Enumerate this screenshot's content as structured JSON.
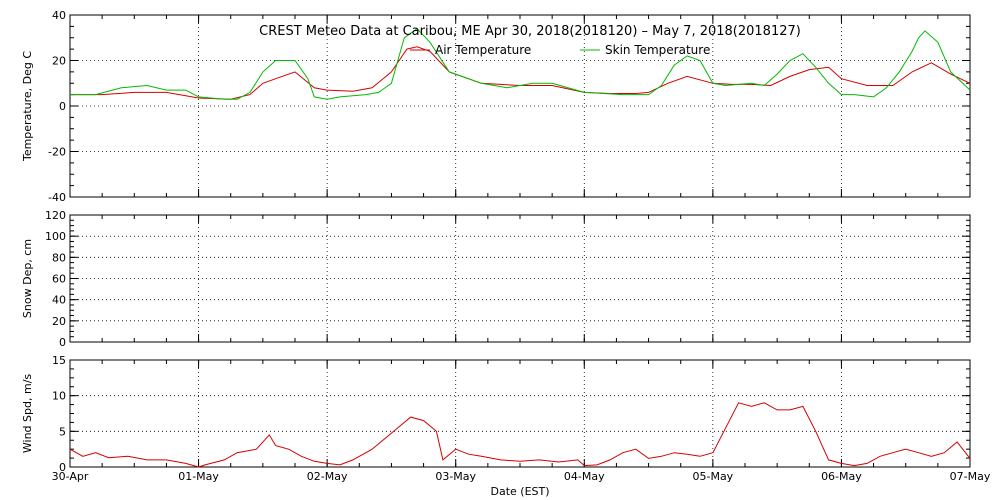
{
  "chart_data": {
    "type": "line",
    "title": "CREST Meteo Data at Caribou, ME   Apr 30, 2018(2018120) – May  7, 2018(2018127)",
    "xlabel": "Date (EST)",
    "x_tick_labels": [
      "30-Apr",
      "01-May",
      "02-May",
      "03-May",
      "04-May",
      "05-May",
      "06-May",
      "07-May"
    ],
    "x_range_days": [
      0,
      7
    ],
    "grid": true,
    "colors": {
      "air": "#d40000",
      "skin": "#00bb00",
      "wind": "#d40000",
      "grid": "#000000"
    },
    "panels": [
      {
        "id": "temperature",
        "ylabel": "Temperature, Deg C",
        "ylim": [
          -40,
          40
        ],
        "y_ticks": [
          -40,
          -20,
          0,
          20,
          40
        ],
        "legend": {
          "placement": "top-center",
          "entries": [
            "Air Temperature",
            "Skin Temperature"
          ]
        },
        "series": [
          {
            "name": "Air Temperature",
            "color": "#d40000",
            "x": [
              0,
              0.25,
              0.5,
              0.75,
              1.0,
              1.25,
              1.4,
              1.5,
              1.6,
              1.75,
              1.9,
              2.0,
              2.2,
              2.35,
              2.5,
              2.62,
              2.7,
              2.8,
              2.95,
              3.2,
              3.5,
              3.75,
              4.0,
              4.2,
              4.4,
              4.5,
              4.65,
              4.8,
              5.0,
              5.15,
              5.3,
              5.45,
              5.6,
              5.75,
              5.9,
              6.0,
              6.2,
              6.4,
              6.55,
              6.7,
              6.85,
              7.0
            ],
            "y": [
              5,
              5,
              6,
              6,
              3.5,
              3,
              5,
              10,
              12,
              15,
              8,
              7,
              6.5,
              8,
              15,
              25,
              26,
              24,
              15,
              10,
              9,
              9,
              6,
              5.5,
              5.5,
              6,
              10,
              13,
              10,
              9.5,
              9.5,
              9,
              13,
              16,
              17,
              12,
              9,
              9,
              15,
              19,
              14,
              10
            ]
          },
          {
            "name": "Skin Temperature",
            "color": "#00bb00",
            "x": [
              0,
              0.2,
              0.4,
              0.6,
              0.75,
              0.9,
              1.0,
              1.2,
              1.3,
              1.4,
              1.5,
              1.6,
              1.75,
              1.85,
              1.9,
              2.0,
              2.1,
              2.3,
              2.4,
              2.5,
              2.6,
              2.7,
              2.8,
              2.95,
              3.2,
              3.4,
              3.6,
              3.75,
              4.0,
              4.3,
              4.5,
              4.6,
              4.7,
              4.8,
              4.9,
              5.0,
              5.1,
              5.3,
              5.4,
              5.5,
              5.6,
              5.7,
              5.8,
              5.9,
              6.0,
              6.1,
              6.25,
              6.35,
              6.45,
              6.55,
              6.6,
              6.65,
              6.75,
              6.85,
              7.0
            ],
            "y": [
              5,
              5,
              8,
              9,
              7,
              7,
              4,
              3,
              3,
              6,
              15,
              20,
              20,
              12,
              4,
              3,
              4,
              5,
              6,
              10,
              30,
              34,
              28,
              15,
              10,
              8,
              10,
              10,
              6,
              5,
              5,
              9,
              18,
              22,
              20,
              10,
              9,
              10,
              9,
              14,
              20,
              23,
              17,
              10,
              5,
              5,
              4,
              8,
              15,
              24,
              30,
              33,
              28,
              15,
              7
            ]
          }
        ]
      },
      {
        "id": "snow",
        "ylabel": "Snow Dep, cm",
        "ylim": [
          0,
          120
        ],
        "y_ticks": [
          0,
          20,
          40,
          60,
          80,
          100,
          120
        ],
        "series": []
      },
      {
        "id": "wind",
        "ylabel": "Wind Spd, m/s",
        "ylim": [
          0,
          15
        ],
        "y_ticks": [
          0,
          5,
          10,
          15
        ],
        "series": [
          {
            "name": "",
            "color": "#d40000",
            "x": [
              0,
              0.1,
              0.2,
              0.3,
              0.45,
              0.6,
              0.75,
              0.9,
              1.0,
              1.05,
              1.2,
              1.3,
              1.45,
              1.55,
              1.6,
              1.7,
              1.8,
              1.9,
              2.0,
              2.1,
              2.2,
              2.35,
              2.45,
              2.55,
              2.65,
              2.75,
              2.85,
              2.9,
              3.0,
              3.1,
              3.2,
              3.35,
              3.5,
              3.65,
              3.8,
              3.95,
              4.0,
              4.1,
              4.2,
              4.3,
              4.4,
              4.5,
              4.6,
              4.7,
              4.8,
              4.9,
              5.0,
              5.1,
              5.2,
              5.3,
              5.4,
              5.5,
              5.6,
              5.7,
              5.8,
              5.85,
              5.9,
              6.0,
              6.1,
              6.2,
              6.3,
              6.4,
              6.5,
              6.6,
              6.7,
              6.8,
              6.9,
              7.0
            ],
            "y": [
              2.5,
              1.5,
              2,
              1.3,
              1.5,
              1,
              1,
              0.5,
              0,
              0.3,
              1,
              2,
              2.5,
              4.5,
              3,
              2.5,
              1.5,
              0.8,
              0.5,
              0.3,
              1,
              2.5,
              4,
              5.5,
              7,
              6.5,
              5,
              1,
              2.5,
              1.8,
              1.5,
              1,
              0.8,
              1,
              0.7,
              1,
              0.2,
              0.3,
              1,
              2,
              2.5,
              1.2,
              1.5,
              2,
              1.8,
              1.5,
              2,
              5.5,
              9,
              8.5,
              9,
              8,
              8,
              8.5,
              5,
              3,
              1,
              0.5,
              0.2,
              0.5,
              1.5,
              2,
              2.5,
              2,
              1.5,
              2,
              3.5,
              1.2
            ]
          }
        ]
      }
    ]
  }
}
